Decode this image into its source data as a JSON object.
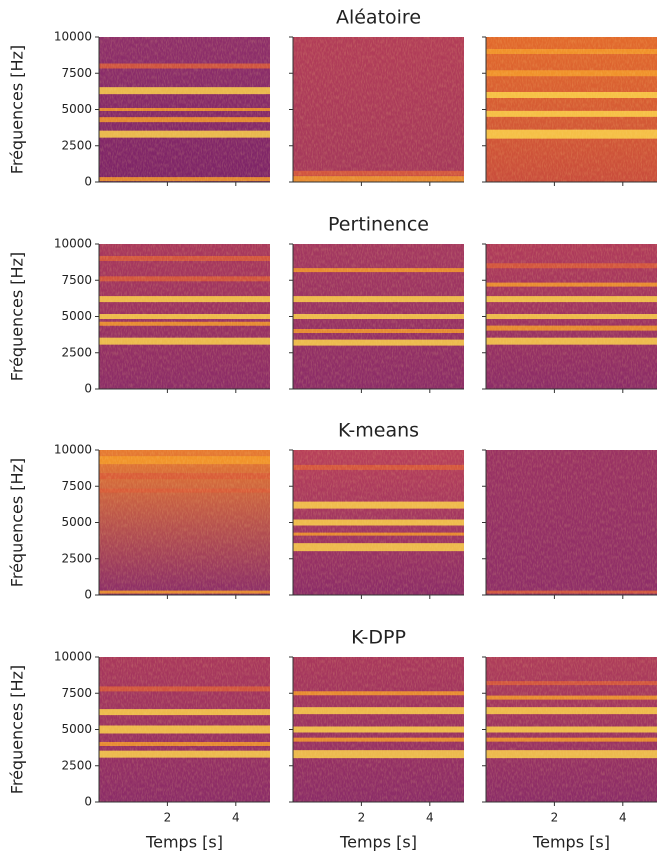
{
  "rows": [
    {
      "title": "Aléatoire"
    },
    {
      "title": "Pertinence"
    },
    {
      "title": "K-means"
    },
    {
      "title": "K-DPP"
    }
  ],
  "columns": 3,
  "ylabel": "Fréquences [Hz]",
  "xlabel": "Temps [s]",
  "ylim": [
    0,
    10000
  ],
  "yticks": [
    0,
    2500,
    5000,
    7500,
    10000
  ],
  "xlim": [
    0,
    5
  ],
  "xticks": [
    2,
    4
  ]
}
